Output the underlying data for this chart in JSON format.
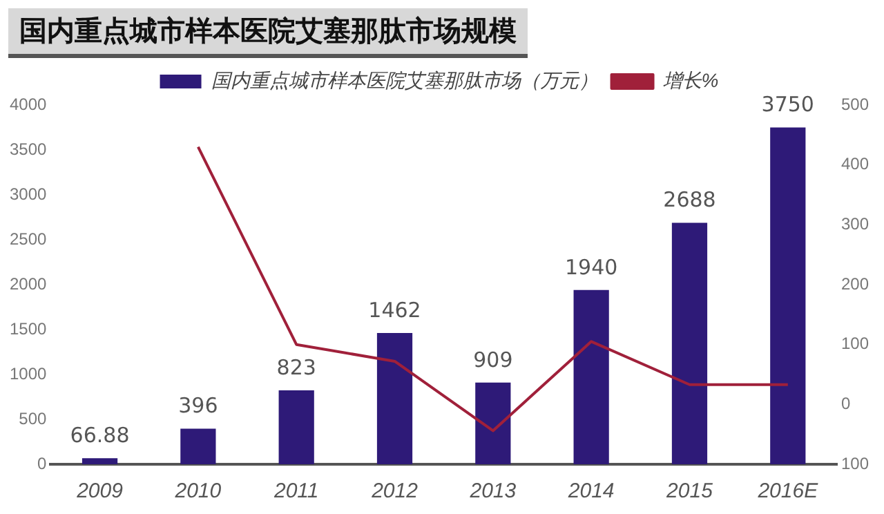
{
  "chart_data": {
    "type": "bar",
    "title": "国内重点城市样本医院艾塞那肽市场规模",
    "categories": [
      "2009",
      "2010",
      "2011",
      "2012",
      "2013",
      "2014",
      "2015",
      "2016E"
    ],
    "series": [
      {
        "name": "国内重点城市样本医院艾塞那肽市场（万元）",
        "color": "#2e1a78",
        "values": [
          66.88,
          396,
          823,
          1462,
          909,
          1940,
          2688,
          3750
        ],
        "value_labels": [
          "66.88",
          "396",
          "823",
          "1462",
          "909",
          "1940",
          "2688",
          "3750"
        ]
      },
      {
        "name": "增长%",
        "type": "line",
        "axis": "y2",
        "color": "#a0203a",
        "values": [
          null,
          430,
          100,
          72,
          -44,
          105,
          33,
          33
        ]
      }
    ],
    "ylim": [
      0,
      4000
    ],
    "yticks": [
      0,
      500,
      1000,
      1500,
      2000,
      2500,
      3000,
      3500,
      4000
    ],
    "y2lim": [
      -100,
      500
    ],
    "y2ticks": [
      {
        "value": -100,
        "label": "100"
      },
      0,
      100,
      200,
      300,
      400,
      500
    ],
    "grid": false,
    "legend": "top",
    "marker": "none"
  }
}
